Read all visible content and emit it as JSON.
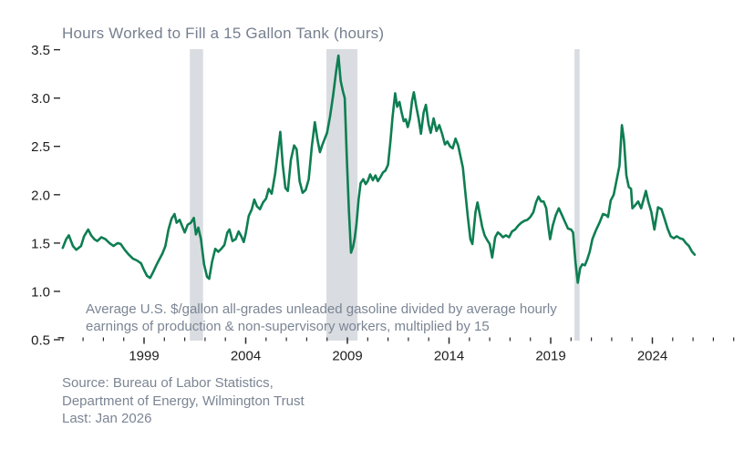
{
  "chart_data": {
    "type": "line",
    "title": "Hours Worked to Fill a 15 Gallon Tank (hours)",
    "ylabel": "",
    "xlabel": "",
    "grid": false,
    "legend": "none",
    "line_color": "#0e7e52",
    "band_color": "#d9dce1",
    "tick_color": "#2a2a2a",
    "text_color": "#7b8594",
    "y_axis": {
      "min": 0.5,
      "max": 3.5,
      "step": 0.5
    },
    "x_axis": {
      "minor_start": 1995,
      "minor_end": 2028,
      "labeled_years": [
        1999,
        2004,
        2009,
        2014,
        2019,
        2024
      ]
    },
    "recessions": [
      {
        "start": 2001.25,
        "end": 2001.9
      },
      {
        "start": 2007.97,
        "end": 2009.5
      },
      {
        "start": 2020.17,
        "end": 2020.42
      }
    ],
    "series": [
      {
        "name": "hours-worked-to-fill-15-gallon-tank",
        "points": [
          [
            1995.0,
            1.45
          ],
          [
            1995.17,
            1.54
          ],
          [
            1995.3,
            1.58
          ],
          [
            1995.5,
            1.47
          ],
          [
            1995.67,
            1.43
          ],
          [
            1995.9,
            1.47
          ],
          [
            1996.05,
            1.57
          ],
          [
            1996.25,
            1.64
          ],
          [
            1996.4,
            1.58
          ],
          [
            1996.55,
            1.54
          ],
          [
            1996.7,
            1.52
          ],
          [
            1996.9,
            1.56
          ],
          [
            1997.1,
            1.54
          ],
          [
            1997.3,
            1.5
          ],
          [
            1997.5,
            1.47
          ],
          [
            1997.7,
            1.5
          ],
          [
            1997.85,
            1.49
          ],
          [
            1998.05,
            1.43
          ],
          [
            1998.25,
            1.38
          ],
          [
            1998.45,
            1.34
          ],
          [
            1998.65,
            1.32
          ],
          [
            1998.85,
            1.29
          ],
          [
            1999.0,
            1.22
          ],
          [
            1999.15,
            1.16
          ],
          [
            1999.3,
            1.14
          ],
          [
            1999.45,
            1.2
          ],
          [
            1999.6,
            1.27
          ],
          [
            1999.75,
            1.33
          ],
          [
            1999.9,
            1.39
          ],
          [
            2000.05,
            1.47
          ],
          [
            2000.2,
            1.64
          ],
          [
            2000.35,
            1.75
          ],
          [
            2000.5,
            1.8
          ],
          [
            2000.6,
            1.71
          ],
          [
            2000.75,
            1.74
          ],
          [
            2000.9,
            1.66
          ],
          [
            2001.0,
            1.61
          ],
          [
            2001.15,
            1.69
          ],
          [
            2001.3,
            1.71
          ],
          [
            2001.45,
            1.76
          ],
          [
            2001.55,
            1.59
          ],
          [
            2001.67,
            1.66
          ],
          [
            2001.8,
            1.54
          ],
          [
            2001.95,
            1.28
          ],
          [
            2002.1,
            1.15
          ],
          [
            2002.2,
            1.13
          ],
          [
            2002.35,
            1.31
          ],
          [
            2002.5,
            1.44
          ],
          [
            2002.65,
            1.41
          ],
          [
            2002.8,
            1.44
          ],
          [
            2002.95,
            1.48
          ],
          [
            2003.1,
            1.61
          ],
          [
            2003.2,
            1.64
          ],
          [
            2003.35,
            1.52
          ],
          [
            2003.5,
            1.54
          ],
          [
            2003.65,
            1.62
          ],
          [
            2003.78,
            1.57
          ],
          [
            2003.9,
            1.51
          ],
          [
            2004.0,
            1.6
          ],
          [
            2004.15,
            1.78
          ],
          [
            2004.3,
            1.85
          ],
          [
            2004.42,
            1.95
          ],
          [
            2004.55,
            1.88
          ],
          [
            2004.7,
            1.85
          ],
          [
            2004.85,
            1.92
          ],
          [
            2005.0,
            1.96
          ],
          [
            2005.13,
            2.06
          ],
          [
            2005.28,
            2.01
          ],
          [
            2005.45,
            2.22
          ],
          [
            2005.6,
            2.48
          ],
          [
            2005.7,
            2.65
          ],
          [
            2005.82,
            2.31
          ],
          [
            2005.95,
            2.07
          ],
          [
            2006.07,
            2.04
          ],
          [
            2006.22,
            2.36
          ],
          [
            2006.38,
            2.51
          ],
          [
            2006.5,
            2.47
          ],
          [
            2006.65,
            2.14
          ],
          [
            2006.8,
            2.02
          ],
          [
            2006.95,
            2.05
          ],
          [
            2007.1,
            2.16
          ],
          [
            2007.25,
            2.5
          ],
          [
            2007.4,
            2.75
          ],
          [
            2007.53,
            2.57
          ],
          [
            2007.65,
            2.44
          ],
          [
            2007.76,
            2.51
          ],
          [
            2007.87,
            2.57
          ],
          [
            2008.0,
            2.64
          ],
          [
            2008.15,
            2.81
          ],
          [
            2008.3,
            3.03
          ],
          [
            2008.45,
            3.28
          ],
          [
            2008.56,
            3.44
          ],
          [
            2008.67,
            3.18
          ],
          [
            2008.78,
            3.07
          ],
          [
            2008.87,
            3.0
          ],
          [
            2008.97,
            2.4
          ],
          [
            2009.07,
            1.85
          ],
          [
            2009.18,
            1.4
          ],
          [
            2009.28,
            1.46
          ],
          [
            2009.36,
            1.55
          ],
          [
            2009.45,
            1.7
          ],
          [
            2009.55,
            1.95
          ],
          [
            2009.65,
            2.12
          ],
          [
            2009.78,
            2.16
          ],
          [
            2009.9,
            2.11
          ],
          [
            2010.0,
            2.14
          ],
          [
            2010.12,
            2.21
          ],
          [
            2010.25,
            2.15
          ],
          [
            2010.38,
            2.2
          ],
          [
            2010.5,
            2.14
          ],
          [
            2010.62,
            2.18
          ],
          [
            2010.75,
            2.23
          ],
          [
            2010.87,
            2.25
          ],
          [
            2011.0,
            2.31
          ],
          [
            2011.12,
            2.56
          ],
          [
            2011.22,
            2.8
          ],
          [
            2011.35,
            3.05
          ],
          [
            2011.45,
            2.91
          ],
          [
            2011.56,
            2.96
          ],
          [
            2011.67,
            2.85
          ],
          [
            2011.77,
            2.76
          ],
          [
            2011.87,
            2.78
          ],
          [
            2011.97,
            2.7
          ],
          [
            2012.08,
            2.79
          ],
          [
            2012.18,
            2.97
          ],
          [
            2012.27,
            3.06
          ],
          [
            2012.4,
            2.9
          ],
          [
            2012.5,
            2.79
          ],
          [
            2012.62,
            2.63
          ],
          [
            2012.75,
            2.85
          ],
          [
            2012.86,
            2.93
          ],
          [
            2012.99,
            2.73
          ],
          [
            2013.1,
            2.64
          ],
          [
            2013.24,
            2.79
          ],
          [
            2013.38,
            2.66
          ],
          [
            2013.52,
            2.72
          ],
          [
            2013.66,
            2.63
          ],
          [
            2013.8,
            2.52
          ],
          [
            2013.92,
            2.55
          ],
          [
            2014.05,
            2.5
          ],
          [
            2014.18,
            2.48
          ],
          [
            2014.32,
            2.58
          ],
          [
            2014.45,
            2.51
          ],
          [
            2014.57,
            2.39
          ],
          [
            2014.68,
            2.28
          ],
          [
            2014.8,
            2.03
          ],
          [
            2014.92,
            1.78
          ],
          [
            2015.05,
            1.54
          ],
          [
            2015.15,
            1.49
          ],
          [
            2015.3,
            1.82
          ],
          [
            2015.4,
            1.92
          ],
          [
            2015.52,
            1.79
          ],
          [
            2015.63,
            1.67
          ],
          [
            2015.75,
            1.58
          ],
          [
            2015.88,
            1.53
          ],
          [
            2016.0,
            1.49
          ],
          [
            2016.12,
            1.35
          ],
          [
            2016.27,
            1.56
          ],
          [
            2016.4,
            1.61
          ],
          [
            2016.52,
            1.59
          ],
          [
            2016.65,
            1.56
          ],
          [
            2016.8,
            1.58
          ],
          [
            2016.95,
            1.56
          ],
          [
            2017.1,
            1.62
          ],
          [
            2017.25,
            1.64
          ],
          [
            2017.4,
            1.68
          ],
          [
            2017.55,
            1.71
          ],
          [
            2017.7,
            1.73
          ],
          [
            2017.85,
            1.74
          ],
          [
            2018.0,
            1.77
          ],
          [
            2018.15,
            1.82
          ],
          [
            2018.28,
            1.92
          ],
          [
            2018.4,
            1.98
          ],
          [
            2018.53,
            1.93
          ],
          [
            2018.65,
            1.93
          ],
          [
            2018.78,
            1.86
          ],
          [
            2018.88,
            1.68
          ],
          [
            2018.97,
            1.54
          ],
          [
            2019.1,
            1.68
          ],
          [
            2019.25,
            1.79
          ],
          [
            2019.4,
            1.86
          ],
          [
            2019.55,
            1.79
          ],
          [
            2019.7,
            1.72
          ],
          [
            2019.85,
            1.65
          ],
          [
            2020.0,
            1.64
          ],
          [
            2020.1,
            1.61
          ],
          [
            2020.22,
            1.3
          ],
          [
            2020.33,
            1.09
          ],
          [
            2020.45,
            1.24
          ],
          [
            2020.55,
            1.28
          ],
          [
            2020.68,
            1.27
          ],
          [
            2020.8,
            1.33
          ],
          [
            2020.92,
            1.41
          ],
          [
            2021.05,
            1.54
          ],
          [
            2021.22,
            1.63
          ],
          [
            2021.4,
            1.71
          ],
          [
            2021.57,
            1.8
          ],
          [
            2021.72,
            1.79
          ],
          [
            2021.82,
            1.77
          ],
          [
            2021.95,
            1.94
          ],
          [
            2022.1,
            2.0
          ],
          [
            2022.25,
            2.16
          ],
          [
            2022.38,
            2.3
          ],
          [
            2022.5,
            2.72
          ],
          [
            2022.6,
            2.57
          ],
          [
            2022.72,
            2.2
          ],
          [
            2022.84,
            2.08
          ],
          [
            2022.95,
            2.06
          ],
          [
            2023.02,
            1.86
          ],
          [
            2023.15,
            1.89
          ],
          [
            2023.3,
            1.93
          ],
          [
            2023.45,
            1.86
          ],
          [
            2023.58,
            1.96
          ],
          [
            2023.68,
            2.04
          ],
          [
            2023.8,
            1.93
          ],
          [
            2023.95,
            1.82
          ],
          [
            2024.1,
            1.64
          ],
          [
            2024.28,
            1.87
          ],
          [
            2024.45,
            1.85
          ],
          [
            2024.6,
            1.75
          ],
          [
            2024.75,
            1.65
          ],
          [
            2024.9,
            1.57
          ],
          [
            2025.05,
            1.55
          ],
          [
            2025.2,
            1.57
          ],
          [
            2025.35,
            1.55
          ],
          [
            2025.5,
            1.54
          ],
          [
            2025.65,
            1.5
          ],
          [
            2025.8,
            1.47
          ],
          [
            2025.95,
            1.41
          ],
          [
            2026.08,
            1.38
          ]
        ]
      }
    ],
    "annotation": {
      "line1": "Average U.S. $/gallon all-grades unleaded gasoline divided by average hourly",
      "line2": "earnings of production & non-supervisory workers, multiplied by 15"
    },
    "source": {
      "line1": "Source: Bureau of Labor Statistics,",
      "line2": "Department of Energy, Wilmington Trust",
      "line3": "Last: Jan 2026"
    }
  }
}
